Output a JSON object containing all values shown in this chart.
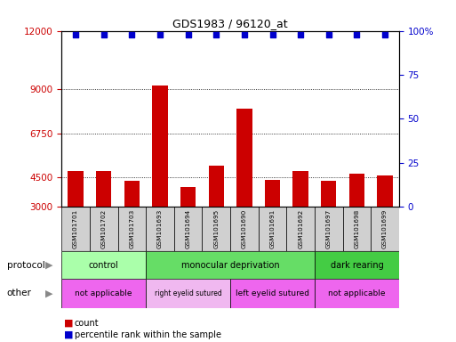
{
  "title": "GDS1983 / 96120_at",
  "samples": [
    "GSM101701",
    "GSM101702",
    "GSM101703",
    "GSM101693",
    "GSM101694",
    "GSM101695",
    "GSM101690",
    "GSM101691",
    "GSM101692",
    "GSM101697",
    "GSM101698",
    "GSM101699"
  ],
  "counts": [
    4850,
    4850,
    4350,
    9200,
    4000,
    5100,
    8000,
    4400,
    4850,
    4350,
    4700,
    4600
  ],
  "percentile_ranks": [
    98,
    98,
    98,
    98,
    98,
    98,
    98,
    98,
    98,
    98,
    98,
    98
  ],
  "bar_color": "#cc0000",
  "dot_color": "#0000cc",
  "ylim_left": [
    3000,
    12000
  ],
  "ylim_right": [
    0,
    100
  ],
  "yticks_left": [
    3000,
    4500,
    6750,
    9000,
    12000
  ],
  "yticks_right": [
    0,
    25,
    50,
    75,
    100
  ],
  "protocol_groups": [
    {
      "label": "control",
      "start": 0,
      "end": 3,
      "color": "#aaffaa"
    },
    {
      "label": "monocular deprivation",
      "start": 3,
      "end": 9,
      "color": "#66dd66"
    },
    {
      "label": "dark rearing",
      "start": 9,
      "end": 12,
      "color": "#44cc44"
    }
  ],
  "other_groups": [
    {
      "label": "not applicable",
      "start": 0,
      "end": 3,
      "color": "#ee66ee"
    },
    {
      "label": "right eyelid sutured",
      "start": 3,
      "end": 6,
      "color": "#f0b8f0"
    },
    {
      "label": "left eyelid sutured",
      "start": 6,
      "end": 9,
      "color": "#ee66ee"
    },
    {
      "label": "not applicable",
      "start": 9,
      "end": 12,
      "color": "#ee66ee"
    }
  ],
  "protocol_row_label": "protocol",
  "other_row_label": "other",
  "bg_color": "#ffffff",
  "sample_bg": "#d0d0d0",
  "bar_width": 0.55,
  "legend_count_color": "#cc0000",
  "legend_pct_color": "#0000cc"
}
